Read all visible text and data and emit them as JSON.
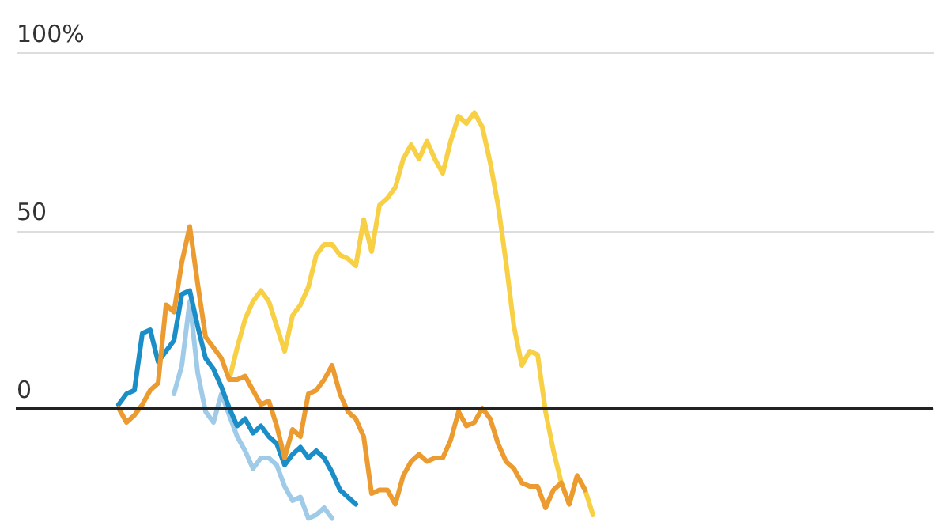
{
  "chart_data": {
    "type": "line",
    "categories": [
      null,
      null,
      null,
      null,
      null,
      null,
      null,
      null,
      null,
      null,
      null,
      null,
      null,
      null,
      null,
      null,
      null,
      null,
      null,
      null,
      null,
      null,
      null,
      null,
      null,
      null,
      null,
      null,
      null,
      null,
      null,
      null,
      null,
      null,
      null,
      null,
      null,
      null,
      null,
      null,
      null,
      null,
      null,
      null,
      null,
      null,
      null,
      null,
      null,
      null,
      null,
      null,
      null,
      null,
      null,
      null,
      null,
      null,
      null,
      null,
      null,
      null,
      null,
      null,
      null,
      null,
      null,
      null,
      null,
      null,
      null,
      null,
      null,
      null,
      null,
      null,
      null,
      null,
      null,
      null,
      null,
      null,
      null,
      null,
      null,
      null,
      null,
      null,
      null,
      null,
      null,
      null,
      null,
      null,
      null,
      null,
      null,
      null,
      null,
      null,
      null,
      null,
      null,
      null,
      null,
      null,
      null,
      null,
      null,
      null,
      null,
      null,
      null,
      null,
      null,
      null,
      null
    ],
    "series": [
      {
        "color": "#9fcbe8",
        "values": [
          null,
          null,
          null,
          null,
          null,
          null,
          null,
          null,
          null,
          null,
          null,
          null,
          null,
          null,
          null,
          null,
          null,
          null,
          null,
          null,
          4,
          12,
          30,
          10,
          -1,
          -4,
          4,
          -2,
          -8,
          -12,
          -17,
          -14,
          -14,
          -16,
          -22,
          -26,
          -25,
          -31,
          -30,
          -28,
          -31,
          null,
          null,
          null,
          null,
          null,
          null,
          null,
          null,
          null,
          null,
          null,
          null,
          null,
          null,
          null,
          null,
          null,
          null,
          null,
          null,
          null,
          null,
          null,
          null,
          null,
          null,
          null,
          null,
          null,
          null,
          null,
          null,
          null,
          null,
          null,
          null,
          null,
          null,
          null,
          null,
          null,
          null,
          null,
          null,
          null,
          null,
          null,
          null,
          null,
          null,
          null,
          null,
          null,
          null,
          null,
          null,
          null,
          null,
          null,
          null,
          null,
          null,
          null,
          null,
          null,
          null,
          null,
          null,
          null,
          null,
          null,
          null,
          null,
          null,
          null,
          null
        ]
      },
      {
        "color": "#1b8dc7",
        "values": [
          null,
          null,
          null,
          null,
          null,
          null,
          null,
          null,
          null,
          null,
          null,
          null,
          null,
          1,
          4,
          5,
          21,
          22,
          13,
          16,
          19,
          32,
          33,
          23,
          14,
          11,
          6,
          0,
          -5,
          -3,
          -7,
          -5,
          -8,
          -10,
          -16,
          -13,
          -11,
          -14,
          -12,
          -14,
          -18,
          -23,
          -25,
          -27,
          null,
          null,
          null,
          null,
          null,
          null,
          null,
          null,
          null,
          null,
          null,
          null,
          null,
          null,
          null,
          null,
          null,
          null,
          null,
          null,
          null,
          null,
          null,
          null,
          null,
          null,
          null,
          null,
          null,
          null,
          null,
          null,
          null,
          null,
          null,
          null,
          null,
          null,
          null,
          null,
          null,
          null,
          null,
          null,
          null,
          null,
          null,
          null,
          null,
          null,
          null,
          null,
          null,
          null,
          null,
          null,
          null,
          null,
          null,
          null,
          null,
          null,
          null,
          null,
          null,
          null,
          null,
          null,
          null,
          null,
          null,
          null,
          null
        ]
      },
      {
        "color": "#f7d046",
        "values": [
          null,
          null,
          null,
          null,
          null,
          null,
          null,
          null,
          null,
          null,
          null,
          null,
          null,
          null,
          null,
          null,
          null,
          null,
          null,
          null,
          null,
          null,
          null,
          null,
          null,
          null,
          null,
          8,
          17,
          25,
          30,
          33,
          30,
          23,
          16,
          26,
          29,
          34,
          43,
          46,
          46,
          43,
          42,
          40,
          53,
          44,
          57,
          59,
          62,
          70,
          74,
          70,
          75,
          70,
          66,
          75,
          82,
          80,
          83,
          79,
          69,
          57,
          41,
          23,
          12,
          16,
          15,
          -1,
          -12,
          -21,
          -27,
          -19,
          -23,
          -30,
          null,
          null,
          null,
          null,
          null,
          null,
          null,
          null,
          null,
          null,
          null,
          null,
          null,
          null,
          null,
          null,
          null,
          null,
          null,
          null,
          null,
          null,
          null,
          null,
          null,
          null,
          null,
          null,
          null,
          null,
          null,
          null,
          null,
          null,
          null,
          null,
          null,
          null,
          null,
          null,
          null,
          null,
          null
        ]
      },
      {
        "color": "#eb9b2f",
        "values": [
          null,
          null,
          null,
          null,
          null,
          null,
          null,
          null,
          null,
          null,
          null,
          null,
          null,
          0,
          -4,
          -2,
          1,
          5,
          7,
          29,
          27,
          41,
          51,
          35,
          20,
          17,
          14,
          8,
          8,
          9,
          5,
          1,
          2,
          -5,
          -14,
          -6,
          -8,
          4,
          5,
          8,
          12,
          4,
          -1,
          -3,
          -8,
          -24,
          -23,
          -23,
          -27,
          -19,
          -15,
          -13,
          -15,
          -14,
          -14,
          -9,
          -1,
          -5,
          -4,
          0,
          -3,
          -10,
          -15,
          -17,
          -21,
          -22,
          -22,
          -28,
          -23,
          -21,
          -27,
          -19,
          -23,
          null,
          null,
          null,
          null,
          null,
          null,
          null,
          null,
          null,
          null,
          null,
          null,
          null,
          null,
          null,
          null,
          null,
          null,
          null,
          null,
          null,
          null,
          null,
          null,
          null,
          null,
          null,
          null,
          null,
          null,
          null,
          null,
          null,
          null,
          null,
          null,
          null,
          null,
          null,
          null,
          null,
          null,
          null,
          null
        ]
      }
    ],
    "ylim": [
      -32,
      100
    ],
    "yticks": [
      {
        "value": 0,
        "label": "0"
      },
      50,
      {
        "value": 100,
        "label": "100%"
      }
    ],
    "grid": "y",
    "tick_labels": "y",
    "legend": false,
    "ref_lines": [
      {
        "axis": "y",
        "value": 0,
        "color": "#222222"
      }
    ]
  }
}
